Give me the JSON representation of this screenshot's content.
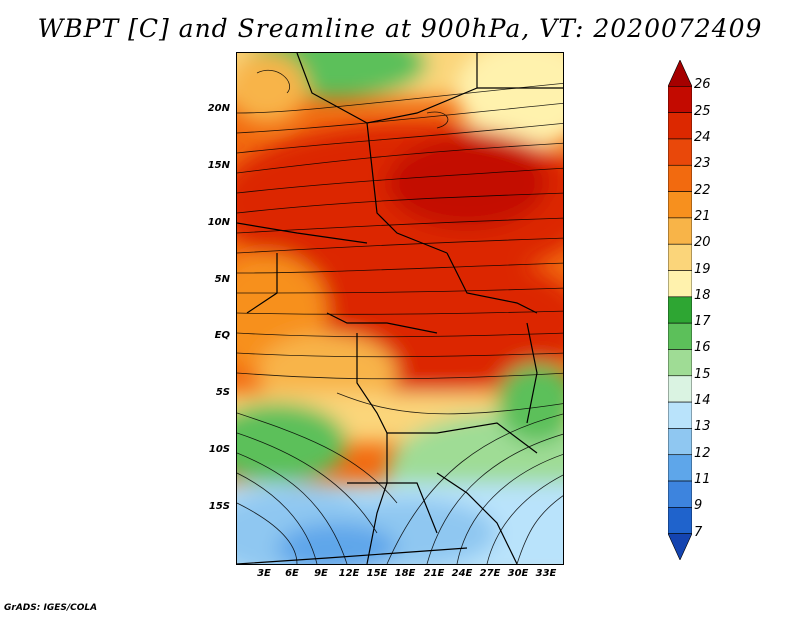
{
  "title": "WBPT [C] and Sreamline at 900hPa, VT: 2020072409",
  "credit": "GrADS: IGES/COLA",
  "lat_labels": [
    "20N",
    "15N",
    "10N",
    "5N",
    "EQ",
    "5S",
    "10S",
    "15S"
  ],
  "lon_labels": [
    "3E",
    "6E",
    "9E",
    "12E",
    "15E",
    "18E",
    "21E",
    "24E",
    "27E",
    "30E",
    "33E"
  ],
  "colorbar": {
    "labels": [
      "26",
      "25",
      "24",
      "23",
      "22",
      "21",
      "20",
      "19",
      "18",
      "17",
      "16",
      "15",
      "14",
      "13",
      "12",
      "11",
      "9",
      "7"
    ],
    "colors": [
      "#a50000",
      "#c30a00",
      "#dc2800",
      "#e9480a",
      "#f26a0f",
      "#f7901e",
      "#f8b448",
      "#fbd57a",
      "#fff2ad",
      "#2ea633",
      "#5cc05a",
      "#9fdc95",
      "#daf3e2",
      "#b9e3fb",
      "#8fc7f1",
      "#5ea6ea",
      "#3d84de",
      "#1f63cc",
      "#1444b0"
    ]
  }
}
